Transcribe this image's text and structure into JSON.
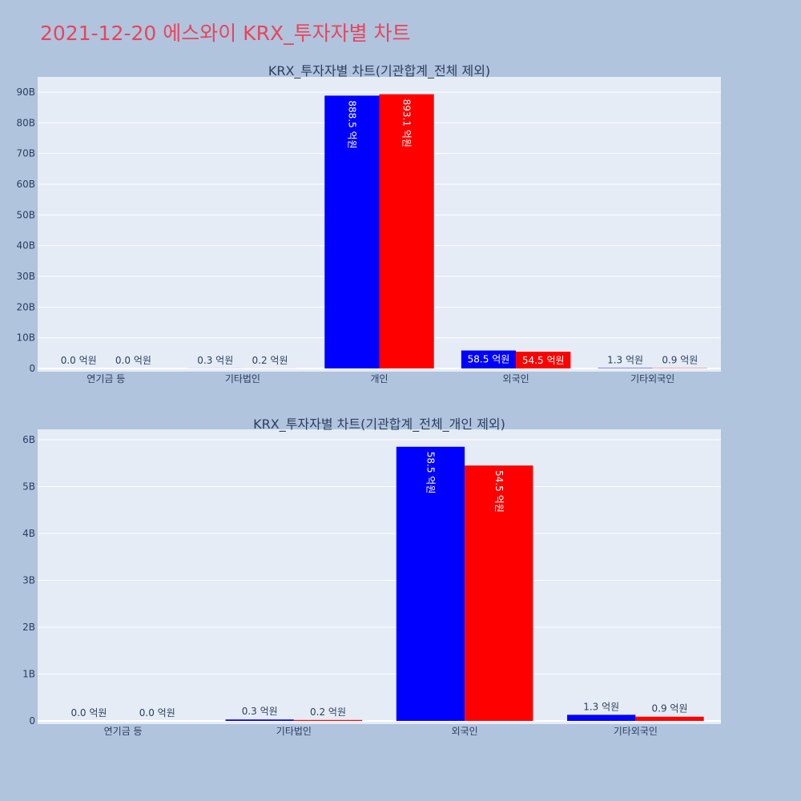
{
  "title": "2021-12-20 에스와이 KRX_투자자별 차트",
  "colors": {
    "page_background": "#b0c4de",
    "plot_background": "#e5ecf6",
    "title_color": "#e8455a",
    "text_color": "#2a3f5f",
    "grid_color": "#ffffff"
  },
  "chart_data": [
    {
      "type": "bar",
      "title": "KRX_투자자별 차트(기관합계_전체 제외)",
      "categories": [
        "연기금 등",
        "기타법인",
        "개인",
        "외국인",
        "기타외국인"
      ],
      "ylim": [
        0,
        90000000000
      ],
      "yticks": [
        {
          "value": 0,
          "label": "0"
        },
        {
          "value": 10000000000,
          "label": "10B"
        },
        {
          "value": 20000000000,
          "label": "20B"
        },
        {
          "value": 30000000000,
          "label": "30B"
        },
        {
          "value": 40000000000,
          "label": "40B"
        },
        {
          "value": 50000000000,
          "label": "50B"
        },
        {
          "value": 60000000000,
          "label": "60B"
        },
        {
          "value": 70000000000,
          "label": "70B"
        },
        {
          "value": 80000000000,
          "label": "80B"
        },
        {
          "value": 90000000000,
          "label": "90B"
        }
      ],
      "grid": true,
      "series": [
        {
          "color": "#0000ff",
          "values": [
            0,
            30000000,
            88850000000,
            5850000000,
            130000000
          ],
          "labels": [
            "0.0 억원",
            "0.3 억원",
            "888.5 억원",
            "58.5 억원",
            "1.3 억원"
          ]
        },
        {
          "color": "#ff0000",
          "values": [
            0,
            20000000,
            89310000000,
            5450000000,
            90000000
          ],
          "labels": [
            "0.0 억원",
            "0.2 억원",
            "893.1 억원",
            "54.5 억원",
            "0.9 억원"
          ]
        }
      ]
    },
    {
      "type": "bar",
      "title": "KRX_투자자별 차트(기관합계_전체_개인 제외)",
      "categories": [
        "연기금 등",
        "기타법인",
        "외국인",
        "기타외국인"
      ],
      "ylim": [
        0,
        6000000000
      ],
      "yticks": [
        {
          "value": 0,
          "label": "0"
        },
        {
          "value": 1000000000,
          "label": "1B"
        },
        {
          "value": 2000000000,
          "label": "2B"
        },
        {
          "value": 3000000000,
          "label": "3B"
        },
        {
          "value": 4000000000,
          "label": "4B"
        },
        {
          "value": 5000000000,
          "label": "5B"
        },
        {
          "value": 6000000000,
          "label": "6B"
        }
      ],
      "grid": true,
      "series": [
        {
          "color": "#0000ff",
          "values": [
            0,
            30000000,
            5850000000,
            130000000
          ],
          "labels": [
            "0.0 억원",
            "0.3 억원",
            "58.5 억원",
            "1.3 억원"
          ]
        },
        {
          "color": "#ff0000",
          "values": [
            0,
            20000000,
            5450000000,
            90000000
          ],
          "labels": [
            "0.0 억원",
            "0.2 억원",
            "54.5 억원",
            "0.9 억원"
          ]
        }
      ]
    }
  ]
}
